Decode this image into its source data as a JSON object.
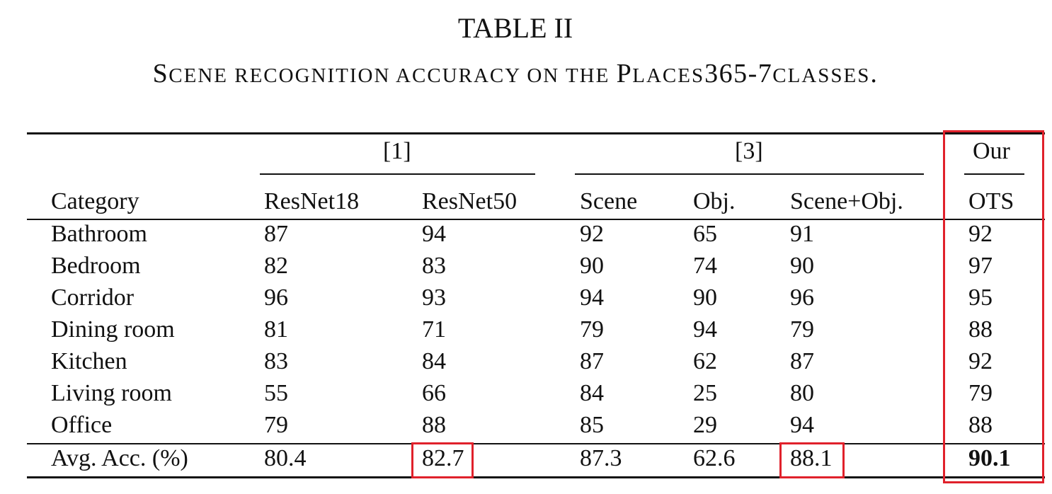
{
  "table": {
    "number": "TABLE II",
    "caption_parts": [
      {
        "text": "S",
        "small_caps": false
      },
      {
        "text": "CENE RECOGNITION ACCURACY ON THE ",
        "small_caps": true
      },
      {
        "text": "P",
        "small_caps": false
      },
      {
        "text": "LACES",
        "small_caps": true
      },
      {
        "text": "365-7",
        "small_caps": false
      },
      {
        "text": "CLASSES",
        "small_caps": true
      },
      {
        "text": ".",
        "small_caps": false
      }
    ],
    "group_headers": {
      "ref1": "[1]",
      "ref3": "[3]",
      "ours": "Our"
    },
    "columns": [
      "Category",
      "ResNet18",
      "ResNet50",
      "Scene",
      "Obj.",
      "Scene+Obj.",
      "OTS"
    ],
    "rows": [
      [
        "Bathroom",
        "87",
        "94",
        "92",
        "65",
        "91",
        "92"
      ],
      [
        "Bedroom",
        "82",
        "83",
        "90",
        "74",
        "90",
        "97"
      ],
      [
        "Corridor",
        "96",
        "93",
        "94",
        "90",
        "96",
        "95"
      ],
      [
        "Dining room",
        "81",
        "71",
        "79",
        "94",
        "79",
        "88"
      ],
      [
        "Kitchen",
        "83",
        "84",
        "87",
        "62",
        "87",
        "92"
      ],
      [
        "Living room",
        "55",
        "66",
        "84",
        "25",
        "80",
        "79"
      ],
      [
        "Office",
        "79",
        "88",
        "85",
        "29",
        "94",
        "88"
      ]
    ],
    "avg_row": [
      "Avg. Acc. (%)",
      "80.4",
      "82.7",
      "87.3",
      "62.6",
      "88.1",
      "90.1"
    ],
    "bold_cells": [
      "avg_row.6"
    ],
    "highlight_color": "#e0212b",
    "highlighted": [
      "avg_row.2",
      "avg_row.5",
      "column OTS"
    ]
  }
}
